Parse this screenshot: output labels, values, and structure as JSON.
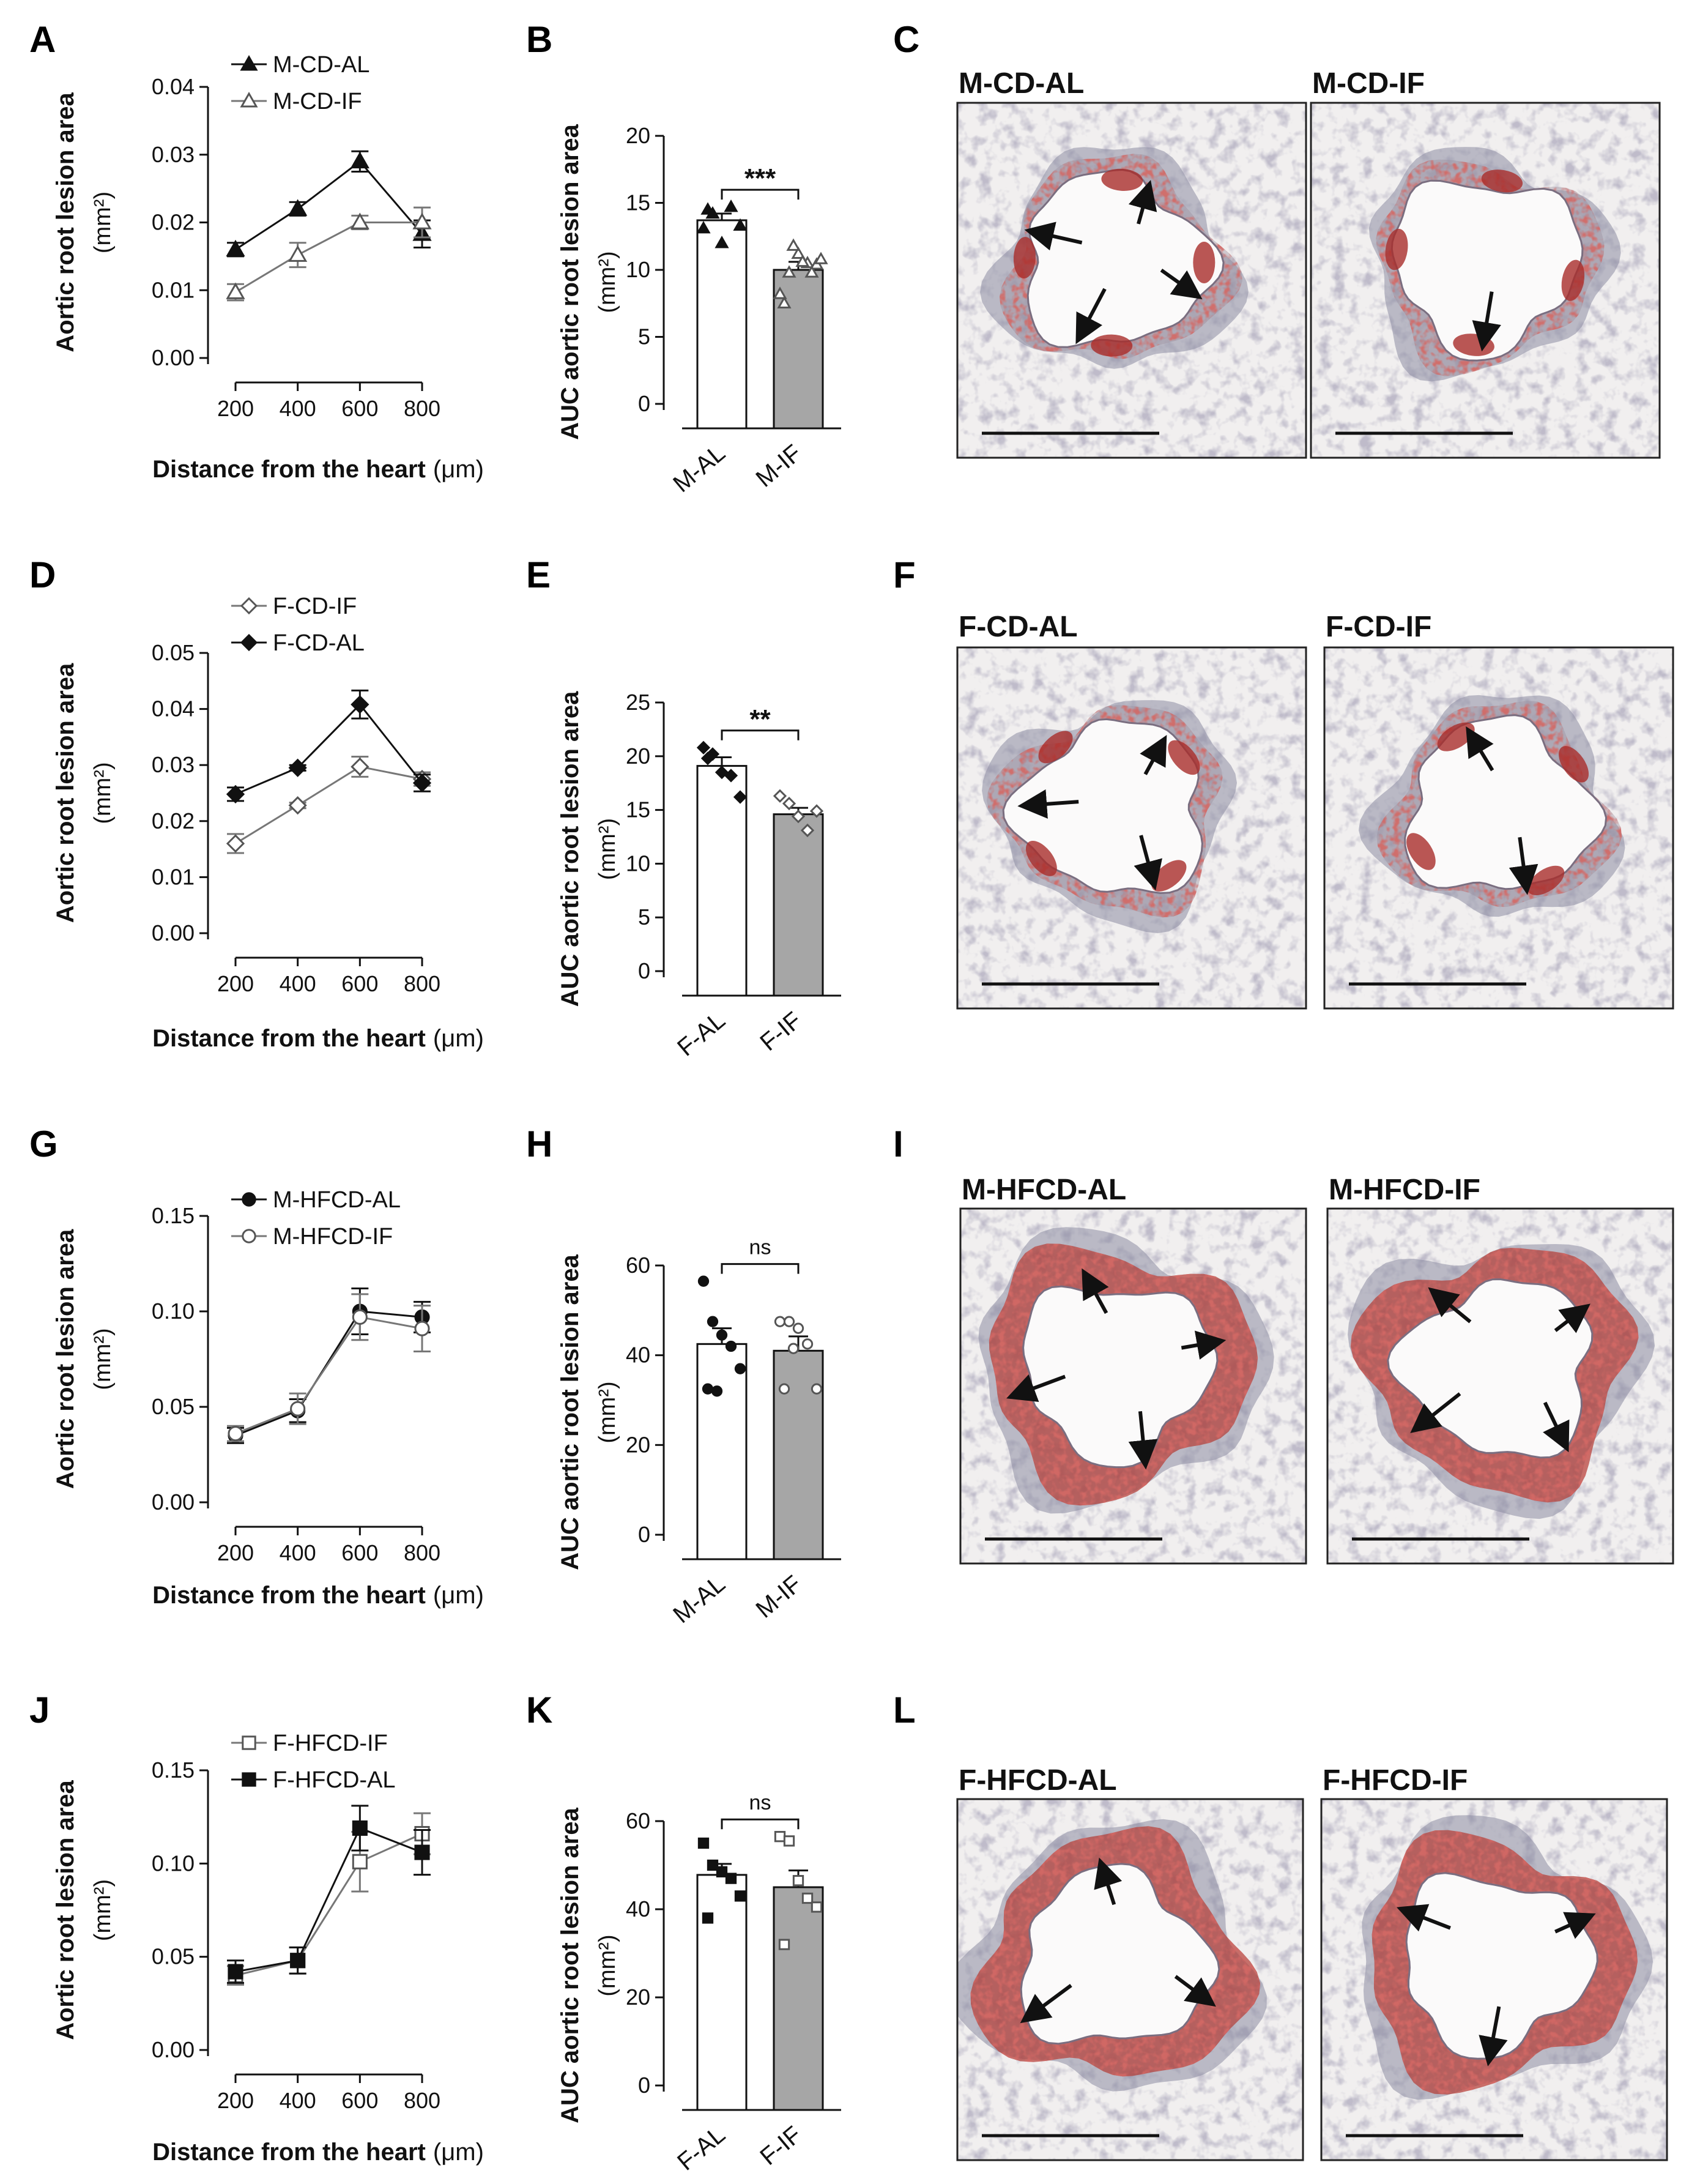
{
  "figure": {
    "x_axis": {
      "label_bold": "Distance from the heart",
      "label_unit": "(μm)",
      "ticks": [
        200,
        400,
        600,
        800
      ]
    },
    "y_axis_line": {
      "label": "Aortic root lesion area",
      "unit": "(mm²)"
    },
    "y_axis_bar": {
      "label": "AUC aortic root lesion area",
      "unit": "(mm²)"
    },
    "rows": [
      {
        "line_panel": {
          "letter": "A",
          "ylim": [
            0,
            0.04
          ],
          "yticks": [
            "0.00",
            "0.01",
            "0.02",
            "0.03",
            "0.04"
          ],
          "series": [
            {
              "name": "M-CD-AL",
              "marker": "triangle",
              "filled": true,
              "x": [
                200,
                400,
                600,
                800
              ],
              "y": [
                0.016,
                0.022,
                0.029,
                0.0183
              ],
              "err": [
                0.001,
                0.001,
                0.0015,
                0.002
              ]
            },
            {
              "name": "M-CD-IF",
              "marker": "triangle",
              "filled": false,
              "x": [
                200,
                400,
                600,
                800
              ],
              "y": [
                0.0097,
                0.0152,
                0.02,
                0.02
              ],
              "err": [
                0.0012,
                0.0018,
                0.001,
                0.0022
              ]
            }
          ]
        },
        "bar_panel": {
          "letter": "B",
          "ylim": [
            0,
            20
          ],
          "yticks": [
            "0",
            "5",
            "10",
            "15",
            "20"
          ],
          "significance": "***",
          "bars": [
            {
              "label": "M-AL",
              "value": 13.7,
              "sem": 0.5,
              "fill": "#ffffff",
              "marker": "triangle",
              "marker_filled": true,
              "points": [
                13.1,
                14.2,
                12.0,
                14.7,
                13.3,
                14.5
              ]
            },
            {
              "label": "M-IF",
              "value": 10.0,
              "sem": 0.6,
              "fill": "#a6a6a6",
              "marker": "triangle",
              "marker_filled": false,
              "points": [
                8.2,
                9.8,
                11.2,
                10.5,
                10.4,
                7.5,
                11.8,
                10.6,
                9.8,
                10.8
              ]
            }
          ]
        },
        "image_panel": {
          "letter": "C",
          "labels": [
            "M-CD-AL",
            "M-CD-IF"
          ]
        }
      },
      {
        "line_panel": {
          "letter": "D",
          "ylim": [
            0,
            0.05
          ],
          "yticks": [
            "0.00",
            "0.01",
            "0.02",
            "0.03",
            "0.04",
            "0.05"
          ],
          "series": [
            {
              "name": "F-CD-IF",
              "marker": "diamond",
              "filled": false,
              "x": [
                200,
                400,
                600,
                800
              ],
              "y": [
                0.016,
                0.0228,
                0.0297,
                0.0275
              ],
              "err": [
                0.0017,
                0.0005,
                0.0018,
                0.0012
              ]
            },
            {
              "name": "F-CD-AL",
              "marker": "diamond",
              "filled": true,
              "x": [
                200,
                400,
                600,
                800
              ],
              "y": [
                0.0248,
                0.0295,
                0.0408,
                0.0268
              ],
              "err": [
                0.0012,
                0.0005,
                0.0025,
                0.0015
              ]
            }
          ]
        },
        "bar_panel": {
          "letter": "E",
          "ylim": [
            0,
            25
          ],
          "yticks": [
            "0",
            "5",
            "10",
            "15",
            "20",
            "25"
          ],
          "significance": "**",
          "bars": [
            {
              "label": "F-AL",
              "value": 19.1,
              "sem": 0.8,
              "fill": "#ffffff",
              "marker": "diamond",
              "marker_filled": true,
              "points": [
                20.8,
                20.2,
                18.5,
                18.2,
                16.2,
                19.8
              ]
            },
            {
              "label": "F-IF",
              "value": 14.6,
              "sem": 0.6,
              "fill": "#a6a6a6",
              "marker": "diamond",
              "marker_filled": false,
              "points": [
                16.3,
                15.6,
                14.4,
                13.1,
                14.9
              ]
            }
          ]
        },
        "image_panel": {
          "letter": "F",
          "labels": [
            "F-CD-AL",
            "F-CD-IF"
          ]
        }
      },
      {
        "line_panel": {
          "letter": "G",
          "ylim": [
            0,
            0.15
          ],
          "yticks": [
            "0.00",
            "0.05",
            "0.10",
            "0.15"
          ],
          "series": [
            {
              "name": "M-HFCD-AL",
              "marker": "circle",
              "filled": true,
              "x": [
                200,
                400,
                600,
                800
              ],
              "y": [
                0.035,
                0.048,
                0.1,
                0.097
              ],
              "err": [
                0.004,
                0.006,
                0.012,
                0.008
              ]
            },
            {
              "name": "M-HFCD-IF",
              "marker": "circle",
              "filled": false,
              "x": [
                200,
                400,
                600,
                800
              ],
              "y": [
                0.036,
                0.049,
                0.097,
                0.091
              ],
              "err": [
                0.004,
                0.008,
                0.012,
                0.012
              ]
            }
          ]
        },
        "bar_panel": {
          "letter": "H",
          "ylim": [
            0,
            60
          ],
          "yticks": [
            "0",
            "20",
            "40",
            "60"
          ],
          "significance": "ns",
          "bars": [
            {
              "label": "M-AL",
              "value": 42.5,
              "sem": 3.5,
              "fill": "#ffffff",
              "marker": "circle",
              "marker_filled": true,
              "points": [
                56.5,
                47.5,
                44.5,
                42.0,
                37.0,
                32.5,
                32.0
              ]
            },
            {
              "label": "M-IF",
              "value": 41.0,
              "sem": 3.2,
              "fill": "#a6a6a6",
              "marker": "circle",
              "marker_filled": false,
              "points": [
                47.5,
                47.5,
                46.0,
                42.5,
                32.5,
                32.5,
                41.5
              ]
            }
          ]
        },
        "image_panel": {
          "letter": "I",
          "labels": [
            "M-HFCD-AL",
            "M-HFCD-IF"
          ]
        }
      },
      {
        "line_panel": {
          "letter": "J",
          "ylim": [
            0,
            0.15
          ],
          "yticks": [
            "0.00",
            "0.05",
            "0.10",
            "0.15"
          ],
          "series": [
            {
              "name": "F-HFCD-IF",
              "marker": "square",
              "filled": false,
              "x": [
                200,
                400,
                600,
                800
              ],
              "y": [
                0.04,
                0.048,
                0.101,
                0.116
              ],
              "err": [
                0.005,
                0.007,
                0.016,
                0.011
              ]
            },
            {
              "name": "F-HFCD-AL",
              "marker": "square",
              "filled": true,
              "x": [
                200,
                400,
                600,
                800
              ],
              "y": [
                0.042,
                0.048,
                0.119,
                0.106
              ],
              "err": [
                0.006,
                0.007,
                0.012,
                0.012
              ]
            }
          ]
        },
        "bar_panel": {
          "letter": "K",
          "ylim": [
            0,
            60
          ],
          "yticks": [
            "0",
            "20",
            "40",
            "60"
          ],
          "significance": "ns",
          "bars": [
            {
              "label": "F-AL",
              "value": 47.8,
              "sem": 2.5,
              "fill": "#ffffff",
              "marker": "square",
              "marker_filled": true,
              "points": [
                55.0,
                50.0,
                48.5,
                47.0,
                43.0,
                38.0
              ]
            },
            {
              "label": "F-IF",
              "value": 45.0,
              "sem": 3.8,
              "fill": "#a6a6a6",
              "marker": "square",
              "marker_filled": false,
              "points": [
                56.5,
                55.5,
                46.5,
                42.5,
                40.5,
                32.0
              ]
            }
          ]
        },
        "image_panel": {
          "letter": "L",
          "labels": [
            "F-HFCD-AL",
            "F-HFCD-IF"
          ]
        }
      }
    ]
  }
}
